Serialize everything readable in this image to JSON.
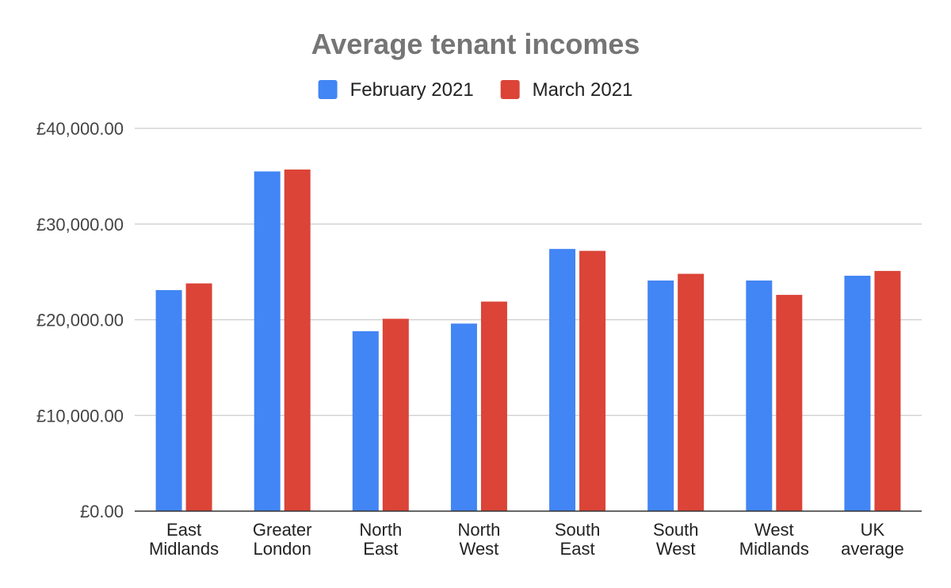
{
  "chart_data": {
    "type": "bar",
    "title": "Average tenant incomes",
    "xlabel": "",
    "ylabel": "",
    "ylim": [
      0,
      40000
    ],
    "yticks": [
      {
        "value": 0,
        "label": "£0.00"
      },
      {
        "value": 10000,
        "label": "£10,000.00"
      },
      {
        "value": 20000,
        "label": "£20,000.00"
      },
      {
        "value": 30000,
        "label": "£30,000.00"
      },
      {
        "value": 40000,
        "label": "£40,000.00"
      }
    ],
    "grid": true,
    "legend_position": "top",
    "categories": [
      [
        "East",
        "Midlands"
      ],
      [
        "Greater",
        "London"
      ],
      [
        "North",
        "East"
      ],
      [
        "North",
        "West"
      ],
      [
        "South",
        "East"
      ],
      [
        "South",
        "West"
      ],
      [
        "West",
        "Midlands"
      ],
      [
        "UK",
        "average"
      ]
    ],
    "series": [
      {
        "name": "February 2021",
        "color": "#4285f4",
        "values": [
          23100,
          35500,
          18800,
          19600,
          27400,
          24100,
          24100,
          24600
        ]
      },
      {
        "name": "March 2021",
        "color": "#db4437",
        "values": [
          23800,
          35700,
          20100,
          21900,
          27200,
          24800,
          22600,
          25100
        ]
      }
    ]
  }
}
